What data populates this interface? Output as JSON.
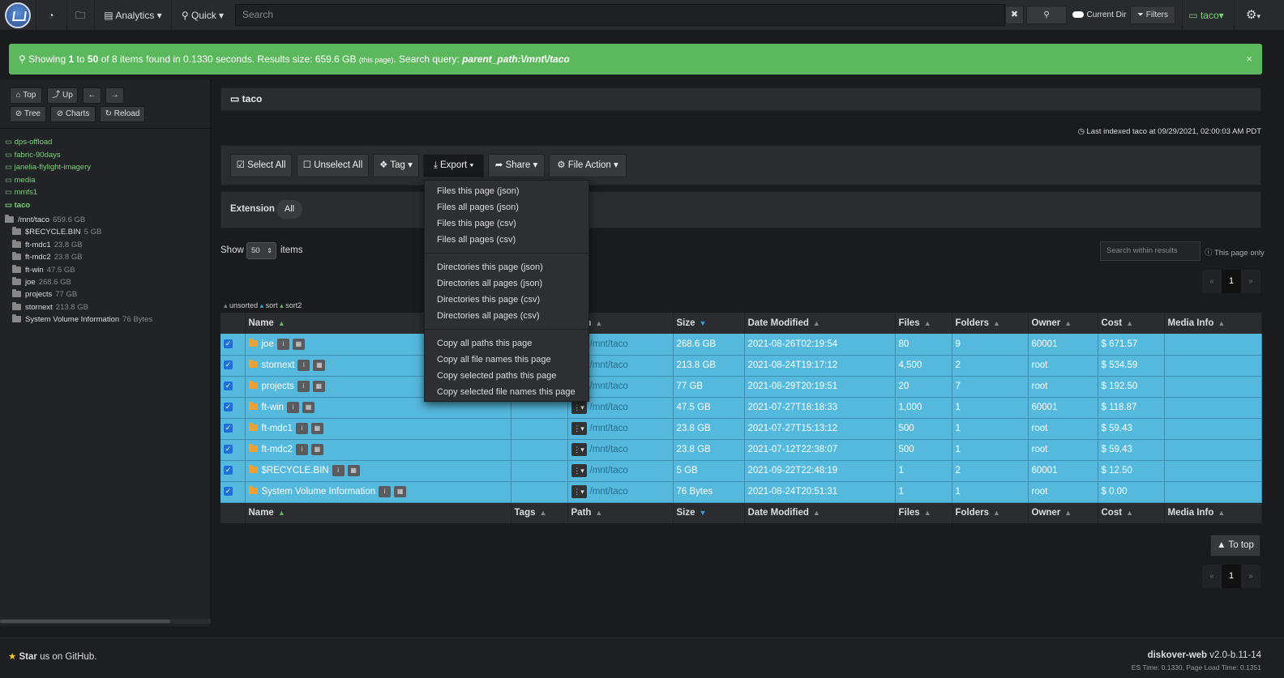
{
  "nav": {
    "analytics": "Analytics",
    "quick": "Quick",
    "search_placeholder": "Search",
    "current_dir": "Current Dir",
    "filters": "Filters",
    "user": "taco"
  },
  "alert": {
    "prefix": "Showing",
    "from": "1",
    "to_word": "to",
    "to": "50",
    "of_word": "of",
    "count": "8",
    "middle": "items found in 0.1330 seconds. Results size: 659.6 GB",
    "this_page": "(this page)",
    "query_label": ". Search query:",
    "query": "parent_path:\\/mnt\\/taco",
    "close": "×"
  },
  "sidebar": {
    "top": "Top",
    "up": "Up",
    "tree": "Tree",
    "charts": "Charts",
    "reload": "Reload",
    "indices": [
      "dps-offload",
      "fabric-90days",
      "janelia-flylight-imagery",
      "media",
      "mmfs1",
      "taco"
    ],
    "root": {
      "name": "/mnt/taco",
      "size": "659.6 GB"
    },
    "dirs": [
      {
        "name": "$RECYCLE.BIN",
        "size": "5 GB"
      },
      {
        "name": "ft-mdc1",
        "size": "23.8 GB"
      },
      {
        "name": "ft-mdc2",
        "size": "23.8 GB"
      },
      {
        "name": "ft-win",
        "size": "47.5 GB"
      },
      {
        "name": "joe",
        "size": "268.6 GB"
      },
      {
        "name": "projects",
        "size": "77 GB"
      },
      {
        "name": "stornext",
        "size": "213.8 GB"
      },
      {
        "name": "System Volume Information",
        "size": "76 Bytes"
      }
    ]
  },
  "main": {
    "crumb": "taco",
    "last_indexed": "Last indexed taco at 09/29/2021, 02:00:03 AM PDT",
    "toolbar": {
      "select_all": "Select All",
      "unselect_all": "Unselect All",
      "tag": "Tag",
      "export": "Export",
      "share": "Share",
      "file_action": "File Action"
    },
    "extension_label": "Extension",
    "extension_all": "All",
    "show": "Show",
    "show_value": "50",
    "items": "items",
    "search_within": "Search within results",
    "this_page_only": "This page only",
    "page": "1",
    "prev": "«",
    "next": "»",
    "sorts": {
      "unsorted": "unsorted",
      "sort": "sort",
      "sort2": "sort2"
    },
    "to_top": "To top"
  },
  "export_menu": [
    [
      "Files this page (json)",
      "Files all pages (json)",
      "Files this page (csv)",
      "Files all pages (csv)"
    ],
    [
      "Directories this page (json)",
      "Directories all pages (json)",
      "Directories this page (csv)",
      "Directories all pages (csv)"
    ],
    [
      "Copy all paths this page",
      "Copy all file names this page",
      "Copy selected paths this page",
      "Copy selected file names this page"
    ]
  ],
  "table": {
    "headers": [
      "Name",
      "Tags",
      "Path",
      "Size",
      "Date Modified",
      "Files",
      "Folders",
      "Owner",
      "Cost",
      "Media Info"
    ],
    "rows": [
      {
        "name": "joe",
        "path": "/mnt/taco",
        "size": "268.6 GB",
        "date": "2021-08-26T02:19:54",
        "files": "80",
        "folders": "9",
        "owner": "60001",
        "cost": "$ 671.57"
      },
      {
        "name": "stornext",
        "path": "/mnt/taco",
        "size": "213.8 GB",
        "date": "2021-08-24T19:17:12",
        "files": "4,500",
        "folders": "2",
        "owner": "root",
        "cost": "$ 534.59"
      },
      {
        "name": "projects",
        "path": "/mnt/taco",
        "size": "77 GB",
        "date": "2021-08-29T20:19:51",
        "files": "20",
        "folders": "7",
        "owner": "root",
        "cost": "$ 192.50"
      },
      {
        "name": "ft-win",
        "path": "/mnt/taco",
        "size": "47.5 GB",
        "date": "2021-07-27T18:18:33",
        "files": "1,000",
        "folders": "1",
        "owner": "60001",
        "cost": "$ 118.87"
      },
      {
        "name": "ft-mdc1",
        "path": "/mnt/taco",
        "size": "23.8 GB",
        "date": "2021-07-27T15:13:12",
        "files": "500",
        "folders": "1",
        "owner": "root",
        "cost": "$ 59.43"
      },
      {
        "name": "ft-mdc2",
        "path": "/mnt/taco",
        "size": "23.8 GB",
        "date": "2021-07-12T22:38:07",
        "files": "500",
        "folders": "1",
        "owner": "root",
        "cost": "$ 59.43"
      },
      {
        "name": "$RECYCLE.BIN",
        "path": "/mnt/taco",
        "size": "5 GB",
        "date": "2021-09-22T22:48:19",
        "files": "1",
        "folders": "2",
        "owner": "60001",
        "cost": "$ 12.50"
      },
      {
        "name": "System Volume Information",
        "path": "/mnt/taco",
        "size": "76 Bytes",
        "date": "2021-08-24T20:51:31",
        "files": "1",
        "folders": "1",
        "owner": "root",
        "cost": "$ 0.00"
      }
    ]
  },
  "footer": {
    "star": "Star",
    "github": "us on GitHub.",
    "app": "diskover-web",
    "version": "v2.0-b.11-14",
    "timing": "ES Time: 0.1330, Page Load Time: 0.1351"
  }
}
